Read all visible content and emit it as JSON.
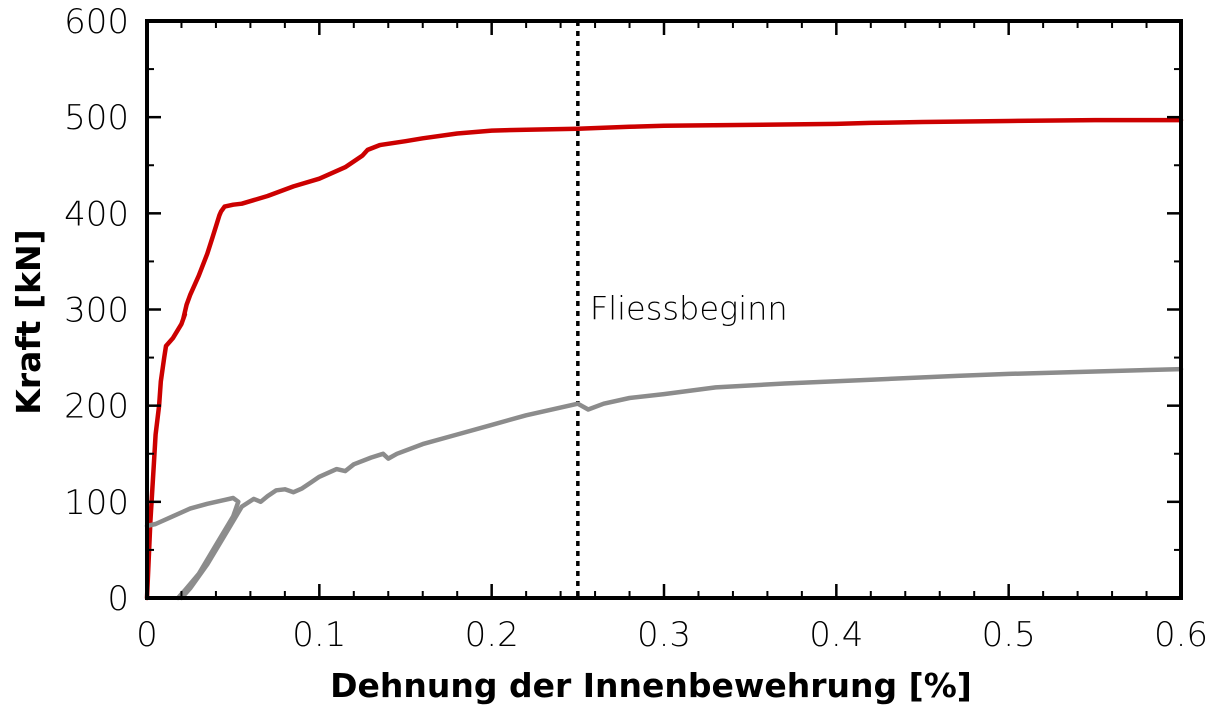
{
  "chart_data": {
    "type": "line",
    "title": "",
    "xlabel": "Dehnung der Innenbewehrung [%]",
    "ylabel": "Kraft [kN]",
    "xlim": [
      0,
      0.6
    ],
    "ylim": [
      0,
      600
    ],
    "x_ticks": [
      0,
      0.1,
      0.2,
      0.3,
      0.4,
      0.5,
      0.6
    ],
    "x_tick_labels": [
      "0",
      "0.1",
      "0.2",
      "0.3",
      "0.4",
      "0.5",
      "0.6"
    ],
    "y_ticks": [
      0,
      100,
      200,
      300,
      400,
      500,
      600
    ],
    "y_tick_labels": [
      "0",
      "100",
      "200",
      "300",
      "400",
      "500",
      "600"
    ],
    "grid": false,
    "legend": "none",
    "series": [
      {
        "color": "#cc0000",
        "points": [
          [
            0,
            0
          ],
          [
            0.002,
            80
          ],
          [
            0.004,
            140
          ],
          [
            0.005,
            170
          ],
          [
            0.007,
            200
          ],
          [
            0.008,
            225
          ],
          [
            0.01,
            250
          ],
          [
            0.011,
            262
          ],
          [
            0.015,
            270
          ],
          [
            0.02,
            285
          ],
          [
            0.022,
            295
          ],
          [
            0.021,
            290
          ],
          [
            0.023,
            305
          ],
          [
            0.025,
            315
          ],
          [
            0.03,
            335
          ],
          [
            0.035,
            358
          ],
          [
            0.038,
            375
          ],
          [
            0.042,
            398
          ],
          [
            0.043,
            402
          ],
          [
            0.045,
            407
          ],
          [
            0.05,
            409
          ],
          [
            0.055,
            410
          ],
          [
            0.07,
            418
          ],
          [
            0.085,
            428
          ],
          [
            0.1,
            436
          ],
          [
            0.115,
            448
          ],
          [
            0.125,
            460
          ],
          [
            0.128,
            466
          ],
          [
            0.135,
            471
          ],
          [
            0.15,
            475
          ],
          [
            0.16,
            478
          ],
          [
            0.18,
            483
          ],
          [
            0.2,
            486
          ],
          [
            0.22,
            487
          ],
          [
            0.25,
            488
          ],
          [
            0.28,
            490
          ],
          [
            0.3,
            491
          ],
          [
            0.35,
            492
          ],
          [
            0.4,
            493
          ],
          [
            0.42,
            494
          ],
          [
            0.45,
            495
          ],
          [
            0.5,
            496
          ],
          [
            0.55,
            497
          ],
          [
            0.6,
            497
          ]
        ]
      },
      {
        "color": "#8c8c8c",
        "points": [
          [
            0.018,
            0
          ],
          [
            0.022,
            8
          ],
          [
            0.03,
            25
          ],
          [
            0.04,
            55
          ],
          [
            0.05,
            85
          ],
          [
            0.053,
            100
          ],
          [
            0.05,
            104
          ],
          [
            0.045,
            102
          ],
          [
            0.035,
            98
          ],
          [
            0.025,
            93
          ],
          [
            0.015,
            85
          ],
          [
            0.005,
            77
          ],
          [
            0,
            75
          ]
        ]
      },
      {
        "color": "#8c8c8c",
        "points": [
          [
            0.02,
            0
          ],
          [
            0.025,
            10
          ],
          [
            0.035,
            35
          ],
          [
            0.045,
            65
          ],
          [
            0.055,
            95
          ],
          [
            0.062,
            103
          ],
          [
            0.066,
            100
          ],
          [
            0.07,
            106
          ],
          [
            0.075,
            112
          ],
          [
            0.08,
            113
          ],
          [
            0.085,
            110
          ],
          [
            0.09,
            114
          ],
          [
            0.095,
            120
          ],
          [
            0.1,
            126
          ],
          [
            0.11,
            134
          ],
          [
            0.115,
            132
          ],
          [
            0.12,
            139
          ],
          [
            0.13,
            146
          ],
          [
            0.137,
            150
          ],
          [
            0.14,
            145
          ],
          [
            0.145,
            150
          ],
          [
            0.16,
            160
          ],
          [
            0.18,
            170
          ],
          [
            0.2,
            180
          ],
          [
            0.22,
            190
          ],
          [
            0.24,
            198
          ],
          [
            0.25,
            202
          ],
          [
            0.256,
            196
          ],
          [
            0.265,
            202
          ],
          [
            0.28,
            208
          ],
          [
            0.3,
            212
          ],
          [
            0.33,
            219
          ],
          [
            0.37,
            223
          ],
          [
            0.42,
            227
          ],
          [
            0.47,
            231
          ],
          [
            0.5,
            233
          ],
          [
            0.54,
            235
          ],
          [
            0.6,
            238
          ]
        ]
      }
    ],
    "annotations": [
      {
        "type": "vline",
        "x": 0.25,
        "style": "dotted",
        "color": "#000000"
      },
      {
        "type": "text",
        "text": "Fliessbeginn",
        "x": 0.25,
        "y": 300
      }
    ]
  }
}
